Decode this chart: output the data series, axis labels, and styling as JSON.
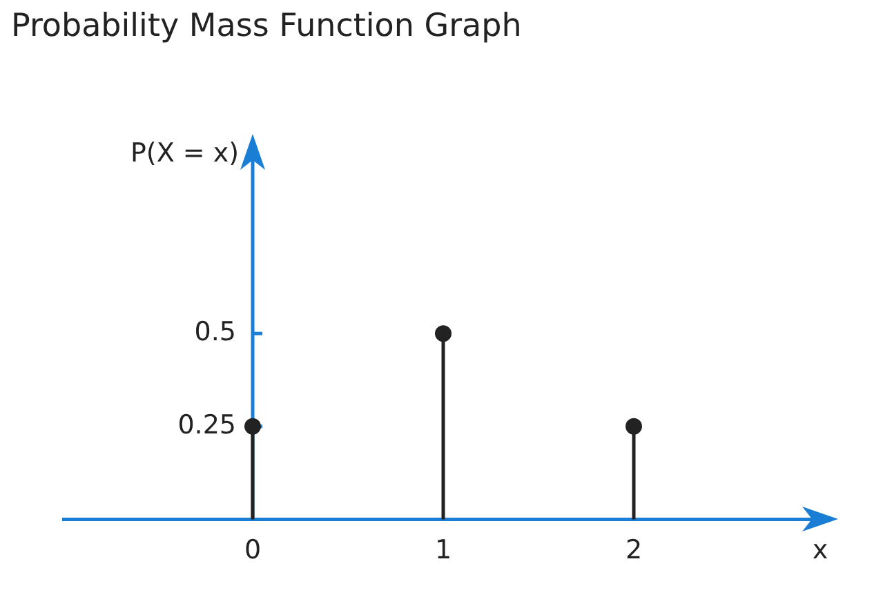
{
  "chart_data": {
    "type": "lollipop",
    "title": "Probability Mass Function Graph",
    "xlabel": "x",
    "ylabel": "P(X = x)",
    "x": [
      0,
      1,
      2
    ],
    "values": [
      0.25,
      0.5,
      0.25
    ],
    "color": "#222222",
    "xlim": [
      -1,
      3
    ],
    "ylim": [
      0,
      1
    ],
    "xticks": [
      0,
      1,
      2
    ],
    "yticks": [
      0.25,
      0.5
    ],
    "marker": "circle"
  }
}
